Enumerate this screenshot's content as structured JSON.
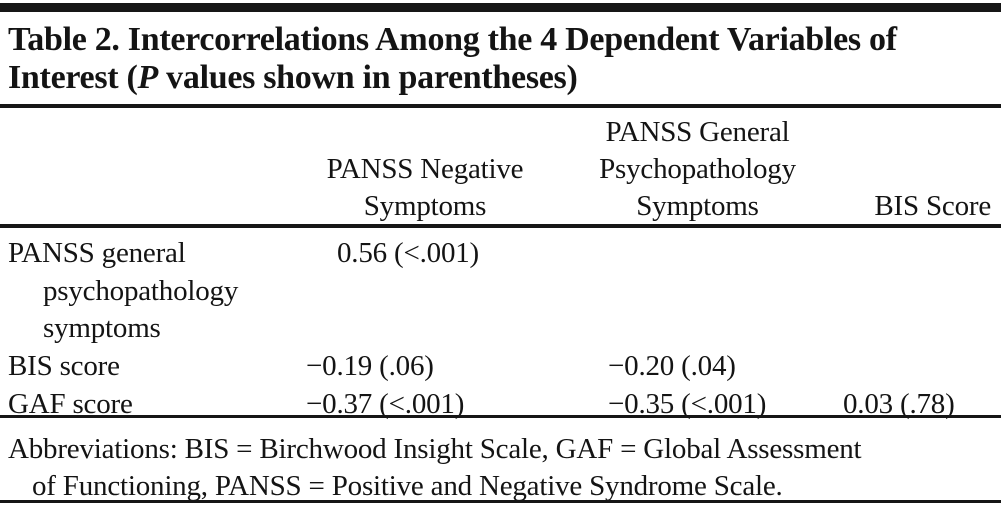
{
  "meta": {
    "background": "#ffffff",
    "text_color": "#141414",
    "rule_color": "#161616"
  },
  "title": {
    "line1": "Table 2. Intercorrelations Among the 4 Dependent Variables of",
    "line2_pre": "Interest (",
    "line2_italic": "P",
    "line2_post": " values shown in parentheses)"
  },
  "header": {
    "columns": [
      {
        "lines": [
          "PANSS Negative",
          "Symptoms"
        ]
      },
      {
        "lines": [
          "PANSS General",
          "Psychopathology",
          "Symptoms"
        ]
      },
      {
        "lines": [
          "BIS Score"
        ]
      }
    ]
  },
  "rows": [
    {
      "label_lines": [
        "PANSS general",
        "psychopathology",
        "symptoms"
      ],
      "values": {
        "col1": "0.56 (<.001)",
        "col2": "",
        "col3": ""
      }
    },
    {
      "label_lines": [
        "BIS score"
      ],
      "values": {
        "col1": "−0.19 (.06)",
        "col2": "−0.20 (.04)",
        "col3": ""
      }
    },
    {
      "label_lines": [
        "GAF score"
      ],
      "values": {
        "col1": "−0.37 (<.001)",
        "col2": "−0.35 (<.001)",
        "col3": "0.03 (.78)"
      }
    }
  ],
  "footnote": {
    "line1": "Abbreviations: BIS = Birchwood Insight Scale, GAF = Global Assessment",
    "line2": "of Functioning, PANSS = Positive and Negative Syndrome Scale."
  }
}
